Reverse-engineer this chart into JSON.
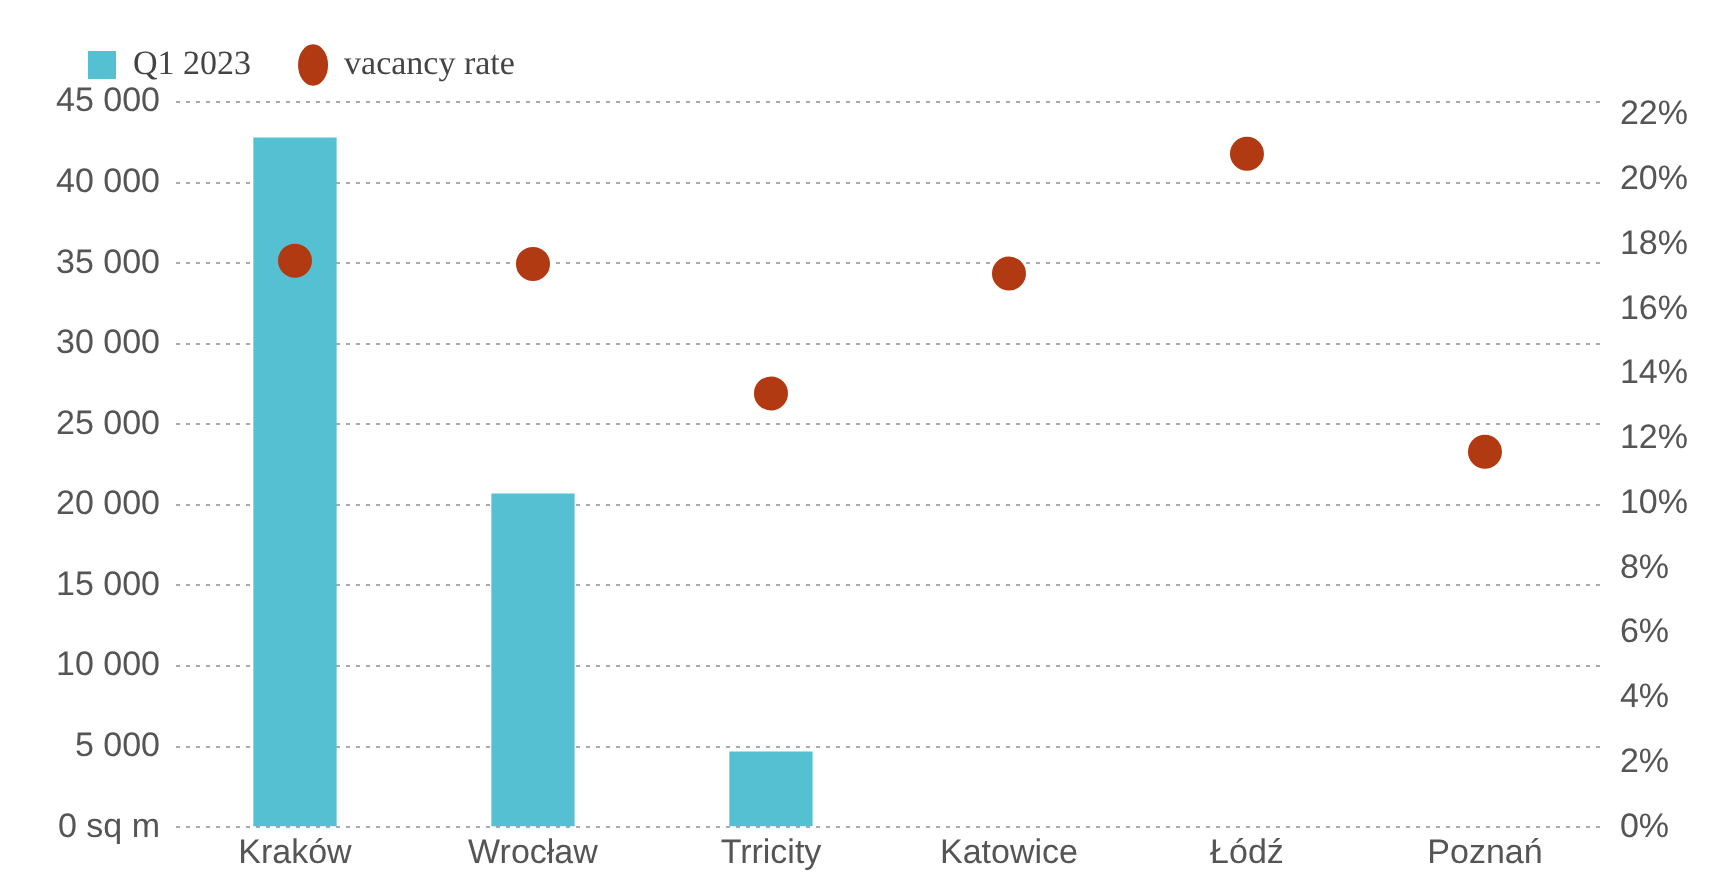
{
  "chart_data": {
    "type": "bar",
    "categories": [
      "Kraków",
      "Wrocław",
      "Trricity",
      "Katowice",
      "Łódź",
      "Poznań"
    ],
    "series": [
      {
        "name": "Q1 2023",
        "color": "#56c0d3",
        "values": [
          42800,
          20700,
          4700,
          null,
          null,
          null
        ]
      },
      {
        "name": "vacancy rate",
        "type": "scatter",
        "axis": "y2",
        "color": "#b23a12",
        "values": [
          17.5,
          17.4,
          13.4,
          17.1,
          20.8,
          11.6
        ]
      }
    ],
    "ylim": [
      0,
      45000
    ],
    "yticks": [
      {
        "value": 0,
        "label": "0 sq m"
      },
      {
        "value": 5000,
        "label": "5 000"
      },
      {
        "value": 10000,
        "label": "10 000"
      },
      {
        "value": 15000,
        "label": "15 000"
      },
      {
        "value": 20000,
        "label": "20 000"
      },
      {
        "value": 25000,
        "label": "25 000"
      },
      {
        "value": 30000,
        "label": "30 000"
      },
      {
        "value": 35000,
        "label": "35 000"
      },
      {
        "value": 40000,
        "label": "40 000"
      },
      {
        "value": 45000,
        "label": "45 000"
      }
    ],
    "y2lim": [
      0,
      22.4
    ],
    "y2ticks": [
      {
        "value": 0,
        "label": "0%"
      },
      {
        "value": 2,
        "label": "2%"
      },
      {
        "value": 4,
        "label": "4%"
      },
      {
        "value": 6,
        "label": "6%"
      },
      {
        "value": 8,
        "label": "8%"
      },
      {
        "value": 10,
        "label": "10%"
      },
      {
        "value": 12,
        "label": "12%"
      },
      {
        "value": 14,
        "label": "14%"
      },
      {
        "value": 16,
        "label": "16%"
      },
      {
        "value": 18,
        "label": "18%"
      },
      {
        "value": 20,
        "label": "20%"
      },
      {
        "value": 22,
        "label": "22%"
      }
    ],
    "grid": "y",
    "legend": "top left",
    "marker": "circle"
  }
}
